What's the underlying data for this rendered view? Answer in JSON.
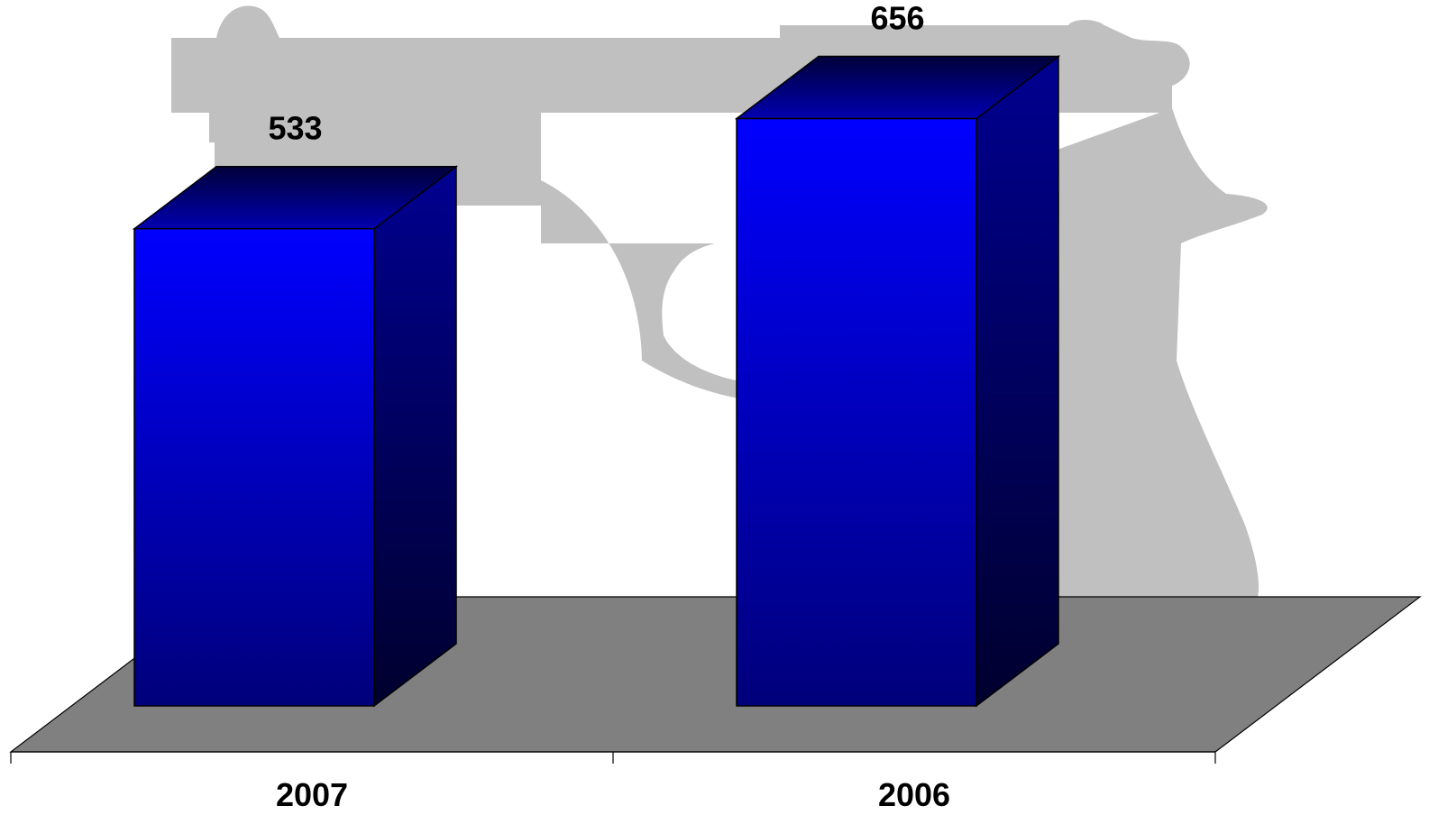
{
  "chart_data": {
    "type": "bar",
    "categories": [
      "2007",
      "2006"
    ],
    "values": [
      533,
      656
    ],
    "title": "",
    "xlabel": "",
    "ylabel": "",
    "ylim": [
      0,
      700
    ],
    "grid": false,
    "legend": "none",
    "data_labels": true,
    "style": "3d-column"
  },
  "colors": {
    "bar_front_top": "#0000ff",
    "bar_front_bottom": "#00007a",
    "bar_side_top": "#000090",
    "bar_side_bottom": "#00002e",
    "bar_top_near": "#0000b0",
    "bar_top_far": "#00003a",
    "floor": "#808080",
    "watermark": "#c0c0c0"
  },
  "background_graphic": "pistol-silhouette"
}
